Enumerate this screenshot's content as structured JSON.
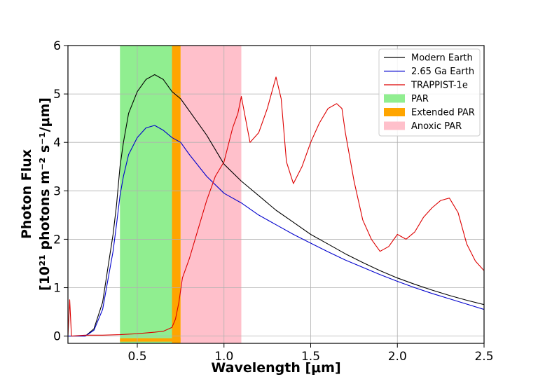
{
  "chart_data": {
    "type": "line",
    "xlabel": "Wavelength   [μm]",
    "ylabel_line1": "Photon Flux",
    "ylabel_line2": "[10²¹ photons m⁻² s⁻¹/μm]",
    "xlim": [
      0.1,
      2.5
    ],
    "ylim": [
      -0.15,
      6.0
    ],
    "x_ticks": [
      0.5,
      1.0,
      1.5,
      2.0,
      2.5
    ],
    "x_tick_labels": [
      "0.5",
      "1.0",
      "1.5",
      "2.0",
      "2.5"
    ],
    "y_ticks": [
      0,
      1,
      2,
      3,
      4,
      5,
      6
    ],
    "y_tick_labels": [
      "0",
      "1",
      "2",
      "3",
      "4",
      "5",
      "6"
    ],
    "grid": true,
    "legend_position": "top-right",
    "bands": [
      {
        "name": "PAR",
        "x0": 0.4,
        "x1": 0.7,
        "color": "#90ee90"
      },
      {
        "name": "Extended PAR",
        "x0": 0.7,
        "x1": 0.75,
        "color": "#ffa500",
        "bottom_edge": true
      },
      {
        "name": "Anoxic PAR",
        "x0": 0.75,
        "x1": 1.1,
        "color": "#ffc0cb"
      }
    ],
    "series": [
      {
        "name": "Modern Earth",
        "color": "#000000",
        "x": [
          0.1,
          0.2,
          0.25,
          0.3,
          0.33,
          0.36,
          0.38,
          0.4,
          0.42,
          0.45,
          0.5,
          0.55,
          0.6,
          0.65,
          0.7,
          0.75,
          0.8,
          0.9,
          1.0,
          1.1,
          1.2,
          1.3,
          1.4,
          1.5,
          1.6,
          1.7,
          1.8,
          1.9,
          2.0,
          2.1,
          2.2,
          2.3,
          2.4,
          2.5
        ],
        "y": [
          0.0,
          0.0,
          0.15,
          0.7,
          1.4,
          2.1,
          2.7,
          3.5,
          4.0,
          4.6,
          5.05,
          5.3,
          5.4,
          5.3,
          5.05,
          4.9,
          4.65,
          4.15,
          3.55,
          3.2,
          2.9,
          2.6,
          2.35,
          2.1,
          1.9,
          1.7,
          1.52,
          1.35,
          1.2,
          1.07,
          0.95,
          0.84,
          0.74,
          0.65
        ]
      },
      {
        "name": "2.65 Ga Earth",
        "color": "#0000cd",
        "x": [
          0.1,
          0.2,
          0.25,
          0.3,
          0.33,
          0.36,
          0.38,
          0.4,
          0.42,
          0.45,
          0.5,
          0.55,
          0.6,
          0.65,
          0.7,
          0.75,
          0.8,
          0.9,
          1.0,
          1.1,
          1.2,
          1.3,
          1.4,
          1.5,
          1.6,
          1.7,
          1.8,
          1.9,
          2.0,
          2.1,
          2.2,
          2.3,
          2.4,
          2.5
        ],
        "y": [
          0.0,
          0.0,
          0.12,
          0.55,
          1.15,
          1.75,
          2.3,
          2.9,
          3.3,
          3.75,
          4.1,
          4.3,
          4.35,
          4.25,
          4.1,
          4.0,
          3.75,
          3.3,
          2.95,
          2.75,
          2.5,
          2.3,
          2.1,
          1.92,
          1.74,
          1.57,
          1.42,
          1.27,
          1.13,
          1.0,
          0.88,
          0.77,
          0.66,
          0.55
        ]
      },
      {
        "name": "TRAPPIST-1e",
        "color": "#dd0000",
        "x": [
          0.1,
          0.11,
          0.12,
          0.2,
          0.3,
          0.4,
          0.5,
          0.6,
          0.65,
          0.7,
          0.72,
          0.74,
          0.76,
          0.8,
          0.85,
          0.9,
          0.95,
          1.0,
          1.05,
          1.08,
          1.1,
          1.15,
          1.2,
          1.25,
          1.3,
          1.33,
          1.36,
          1.4,
          1.45,
          1.5,
          1.55,
          1.6,
          1.65,
          1.68,
          1.7,
          1.75,
          1.8,
          1.85,
          1.9,
          1.95,
          2.0,
          2.05,
          2.1,
          2.15,
          2.2,
          2.25,
          2.3,
          2.35,
          2.4,
          2.45,
          2.5
        ],
        "y": [
          0.0,
          0.75,
          0.0,
          0.02,
          0.02,
          0.03,
          0.05,
          0.08,
          0.1,
          0.18,
          0.35,
          0.7,
          1.2,
          1.6,
          2.2,
          2.8,
          3.3,
          3.6,
          4.3,
          4.6,
          4.95,
          4.0,
          4.2,
          4.7,
          5.35,
          4.9,
          3.6,
          3.15,
          3.5,
          4.0,
          4.4,
          4.7,
          4.8,
          4.7,
          4.2,
          3.2,
          2.4,
          2.0,
          1.75,
          1.85,
          2.1,
          2.0,
          2.15,
          2.45,
          2.65,
          2.8,
          2.85,
          2.55,
          1.9,
          1.55,
          1.35
        ]
      }
    ]
  }
}
